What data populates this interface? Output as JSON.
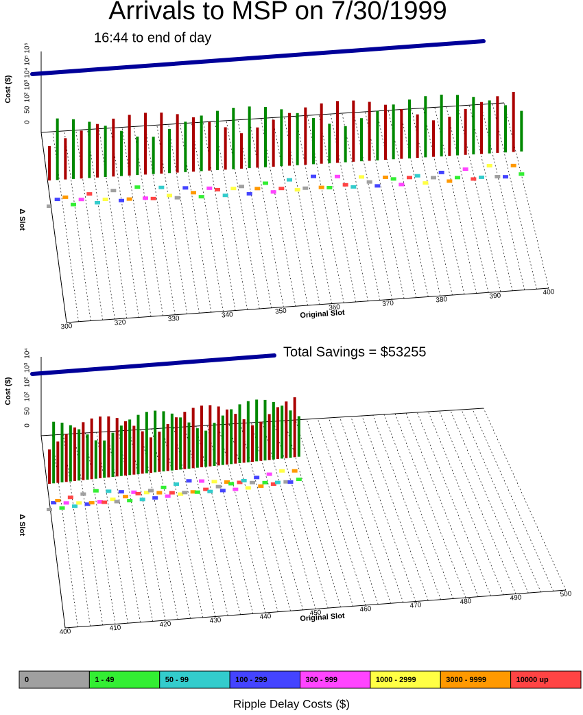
{
  "title": "Arrivals to MSP on 7/30/1999",
  "subtitle": "16:44 to end of day",
  "panels": [
    {
      "y_label": "Cost ($)",
      "slot_label": "Δ Slot",
      "x_label": "Original Slot",
      "cost_ticks": [
        "10⁶",
        "10⁵",
        "10⁴",
        "10³",
        "10²",
        "50",
        "0"
      ],
      "slot_ticks": [
        "300",
        "320",
        "330",
        "340",
        "350",
        "360",
        "370",
        "380",
        "390",
        "400"
      ]
    },
    {
      "annotation": "Total Savings = $53255",
      "y_label": "Cost ($)",
      "slot_label": "Δ Slot",
      "x_label": "Original Slot",
      "cost_ticks": [
        "10⁴",
        "10³",
        "10²",
        "10²",
        "50",
        "0"
      ],
      "slot_ticks": [
        "400",
        "410",
        "420",
        "430",
        "440",
        "450",
        "460",
        "470",
        "480",
        "490",
        "500"
      ]
    }
  ],
  "legend": {
    "title": "Ripple Delay Costs ($)",
    "items": [
      {
        "label": "0",
        "color": "#a0a0a0"
      },
      {
        "label": "1 - 49",
        "color": "#33ee33"
      },
      {
        "label": "50 - 99",
        "color": "#33cccc"
      },
      {
        "label": "100 - 299",
        "color": "#4444ff"
      },
      {
        "label": "300 - 999",
        "color": "#ff44ff"
      },
      {
        "label": "1000 - 2999",
        "color": "#ffff44"
      },
      {
        "label": "3000 - 9999",
        "color": "#ff9900"
      },
      {
        "label": "10000 up",
        "color": "#ff4444"
      }
    ]
  }
}
